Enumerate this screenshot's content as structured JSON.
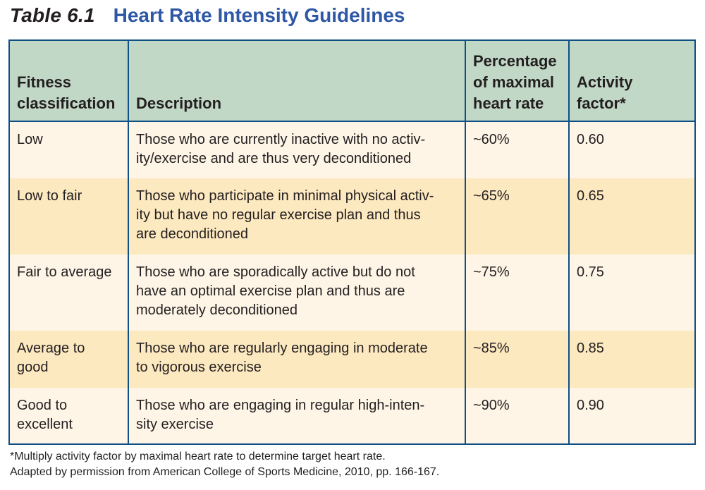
{
  "title": {
    "number": "Table 6.1",
    "text": "Heart Rate Intensity Guidelines"
  },
  "table": {
    "headers": [
      [
        "Fitness",
        "classification"
      ],
      [
        "Description"
      ],
      [
        "Percentage",
        "of maximal",
        "heart rate"
      ],
      [
        "Activity",
        "factor*"
      ]
    ],
    "rows": [
      {
        "classification": [
          "Low"
        ],
        "description": [
          "Those who are currently inactive with no activ-",
          "ity/exercise and are thus very deconditioned"
        ],
        "percentage": "~60%",
        "factor": "0.60"
      },
      {
        "classification": [
          "Low to fair"
        ],
        "description": [
          "Those who participate in minimal physical activ-",
          "ity but have no regular exercise plan and thus",
          "are deconditioned"
        ],
        "percentage": "~65%",
        "factor": "0.65"
      },
      {
        "classification": [
          "Fair to average"
        ],
        "description": [
          "Those who are sporadically active but do not",
          "have an optimal exercise plan and thus are",
          "moderately deconditioned"
        ],
        "percentage": "~75%",
        "factor": "0.75"
      },
      {
        "classification": [
          "Average to",
          "good"
        ],
        "description": [
          "Those who are regularly engaging in moderate",
          "to vigorous exercise"
        ],
        "percentage": "~85%",
        "factor": "0.85"
      },
      {
        "classification": [
          "Good to",
          "excellent"
        ],
        "description": [
          "Those who are engaging in regular high-inten-",
          "sity exercise"
        ],
        "percentage": "~90%",
        "factor": "0.90"
      }
    ]
  },
  "footnotes": [
    "*Multiply activity factor by maximal heart rate to determine target heart rate.",
    "Adapted by permission from American College of Sports Medicine, 2010, pp. 166-167."
  ]
}
